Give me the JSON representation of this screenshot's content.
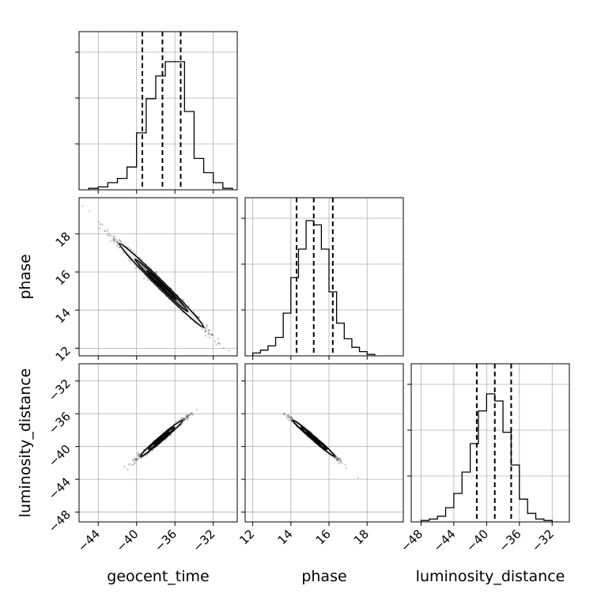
{
  "chart_data": {
    "type": "corner",
    "parameters": [
      "geocent_time",
      "phase",
      "luminosity_distance"
    ],
    "axis_labels": {
      "geocent_time": "geocent_time",
      "phase": "phase",
      "luminosity_distance": "luminosity_distance"
    },
    "ranges": {
      "geocent_time": [
        -46,
        -29.5
      ],
      "phase": [
        11.6,
        19.9
      ],
      "luminosity_distance": [
        -49.2,
        -29.9
      ]
    },
    "ticks": {
      "geocent_time": [
        -44,
        -40,
        -36,
        -32
      ],
      "phase": [
        12,
        14,
        16,
        18
      ],
      "luminosity_distance": [
        -48,
        -44,
        -40,
        -36,
        -32
      ]
    },
    "tick_labels": {
      "geocent_time": [
        "−44",
        "−40",
        "−36",
        "−32"
      ],
      "phase": [
        "12",
        "14",
        "16",
        "18"
      ],
      "luminosity_distance": [
        "−48",
        "−44",
        "−40",
        "−36",
        "−32"
      ]
    },
    "quantiles": {
      "geocent_time": [
        -39.4,
        -37.3,
        -35.4
      ],
      "phase": [
        14.3,
        15.2,
        16.2
      ],
      "luminosity_distance": [
        -41.2,
        -39.0,
        -37.0
      ]
    },
    "histograms": {
      "geocent_time": {
        "edges": [
          -45,
          -44,
          -43,
          -42,
          -41,
          -40,
          -39,
          -38,
          -37,
          -36,
          -35,
          -34,
          -33,
          -32,
          -31,
          -30
        ],
        "counts": [
          0.01,
          0.02,
          0.05,
          0.08,
          0.16,
          0.4,
          0.64,
          0.8,
          0.9,
          0.9,
          0.55,
          0.22,
          0.12,
          0.05,
          0.01
        ]
      },
      "phase": {
        "edges": [
          12.0,
          12.4,
          12.8,
          13.2,
          13.6,
          14.0,
          14.4,
          14.8,
          15.2,
          15.6,
          16.0,
          16.4,
          16.8,
          17.2,
          17.6,
          18.0,
          18.4
        ],
        "counts": [
          0.02,
          0.04,
          0.07,
          0.13,
          0.3,
          0.55,
          0.75,
          0.95,
          0.92,
          0.75,
          0.45,
          0.23,
          0.12,
          0.06,
          0.03,
          0.01
        ]
      },
      "luminosity_distance": {
        "edges": [
          -48,
          -47,
          -46,
          -45,
          -44,
          -43,
          -42,
          -41,
          -40,
          -39,
          -38,
          -37,
          -36,
          -35,
          -34,
          -33,
          -32
        ],
        "counts": [
          0.01,
          0.02,
          0.04,
          0.1,
          0.2,
          0.35,
          0.55,
          0.78,
          0.9,
          0.85,
          0.63,
          0.4,
          0.16,
          0.06,
          0.02,
          0.01
        ]
      }
    },
    "pair_samples": [
      {
        "x": "geocent_time",
        "y": "phase",
        "mean": [
          -37.4,
          15.3
        ],
        "axis_dir": [
          2.0,
          -1.0
        ],
        "major_sd": 2.0,
        "minor_sd": 0.16
      },
      {
        "x": "geocent_time",
        "y": "luminosity_distance",
        "mean": [
          -37.4,
          -39.0
        ],
        "axis_dir": [
          1.0,
          1.0
        ],
        "major_sd": 2.0,
        "minor_sd": 0.22
      },
      {
        "x": "phase",
        "y": "luminosity_distance",
        "mean": [
          15.2,
          -39.0
        ],
        "axis_dir": [
          0.5,
          -1.0
        ],
        "major_sd": 2.0,
        "minor_sd": 0.18
      }
    ],
    "grid": true,
    "colors": {
      "line": "#000000",
      "points": "#555555",
      "contour_fill": [
        "#e8e8e8",
        "#9a9a9a",
        "#3a3a3a",
        "#000000"
      ],
      "grid": "#b0b0b0"
    }
  }
}
